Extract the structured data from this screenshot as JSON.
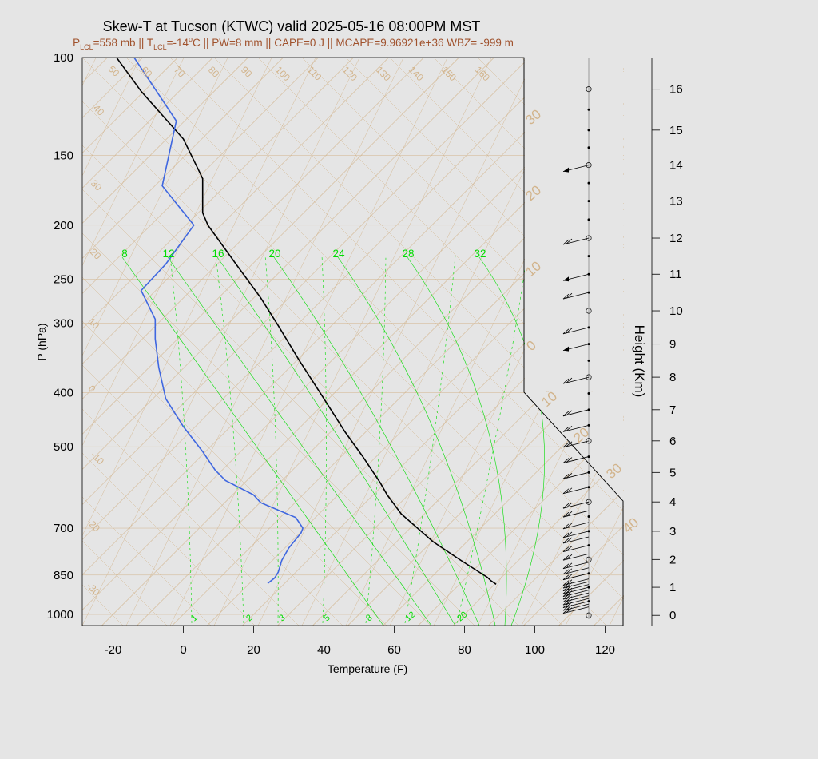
{
  "title": "Skew-T at Tucson (KTWC) valid 2025-05-16 08:00PM MST",
  "subtitle": {
    "p_lcl_sym": "P",
    "p_lcl_sub": "LCL",
    "p_lcl_val": "=558 mb || ",
    "t_lcl_sym": "T",
    "t_lcl_sub": "LCL",
    "t_lcl_val": "=-14",
    "deg": "o",
    "rest": "C || PW=8 mm || CAPE=0 J || MCAPE=9.96921e+36 WBZ= -999 m"
  },
  "colors": {
    "background": "#e5e5e5",
    "temperature": "#000000",
    "dewpoint": "#3f67e0",
    "isotherm": "#d2b48c",
    "mixing_ratio": "#00dd00",
    "wind": "#000000"
  },
  "axes": {
    "xlabel": "Temperature (F)",
    "ylabel": "P (hPa)",
    "y2label": "Height (Km)",
    "x_ticks": [
      "-20",
      "0",
      "20",
      "40",
      "60",
      "80",
      "100",
      "120"
    ],
    "y_ticks": [
      "100",
      "150",
      "200",
      "250",
      "300",
      "400",
      "500",
      "700",
      "850",
      "1000"
    ],
    "height_ticks": [
      "0",
      "1",
      "2",
      "3",
      "4",
      "5",
      "6",
      "7",
      "8",
      "9",
      "10",
      "11",
      "12",
      "13",
      "14",
      "15",
      "16"
    ]
  },
  "chart_data": {
    "type": "line",
    "title": "Skew-T at Tucson (KTWC) valid 2025-05-16 08:00PM MST",
    "xlabel": "Temperature (F)",
    "ylabel": "P (hPa)",
    "xlim": [
      -28,
      125
    ],
    "ylim": [
      1030,
      100
    ],
    "y_scale": "log",
    "skewed_temperature_axes": true,
    "isotherm_labels": [
      "50",
      "60",
      "70",
      "80",
      "90",
      "100",
      "110",
      "120",
      "130",
      "140",
      "150",
      "160",
      "40",
      "30",
      "20",
      "10",
      "0",
      "-10",
      "-20",
      "-30"
    ],
    "mixing_ratio_labels_top": [
      "8",
      "12",
      "16",
      "20",
      "24",
      "28",
      "32"
    ],
    "mixing_ratio_labels_bottom": [
      "1",
      "2",
      "3",
      "5",
      "8",
      "12",
      "20"
    ],
    "theta_labels": [
      "30",
      "20",
      "10",
      "0",
      "10",
      "20",
      "30",
      "40"
    ],
    "series": [
      {
        "name": "Temperature",
        "points": [
          [
            89.0,
            883
          ],
          [
            87.5,
            870
          ],
          [
            86.5,
            858
          ],
          [
            79,
            800
          ],
          [
            71,
            740
          ],
          [
            62,
            660
          ],
          [
            58,
            610
          ],
          [
            56,
            580
          ],
          [
            51,
            520
          ],
          [
            46,
            470
          ],
          [
            40,
            410
          ],
          [
            33,
            350
          ],
          [
            27,
            303
          ],
          [
            22,
            270
          ],
          [
            15,
            235
          ],
          [
            7,
            200
          ],
          [
            5.5,
            190
          ],
          [
            5.5,
            165
          ],
          [
            4.5,
            160
          ],
          [
            0,
            140
          ],
          [
            -12,
            115
          ],
          [
            -19,
            100
          ]
        ]
      },
      {
        "name": "Dewpoint",
        "points": [
          [
            24,
            880
          ],
          [
            26,
            860
          ],
          [
            27,
            840
          ],
          [
            28,
            800
          ],
          [
            30,
            760
          ],
          [
            33.5,
            714
          ],
          [
            34,
            700
          ],
          [
            32,
            670
          ],
          [
            22,
            630
          ],
          [
            20,
            610
          ],
          [
            12,
            575
          ],
          [
            9,
            550
          ],
          [
            5.5,
            510
          ],
          [
            0,
            460
          ],
          [
            -5,
            410
          ],
          [
            -7,
            360
          ],
          [
            -8,
            320
          ],
          [
            -8,
            295
          ],
          [
            -12,
            262
          ],
          [
            -5,
            235
          ],
          [
            3,
            200
          ],
          [
            -6,
            170
          ],
          [
            -2,
            130
          ],
          [
            -14,
            100
          ]
        ]
      }
    ],
    "height_axis": {
      "range_km": [
        0,
        16
      ],
      "pressures_hpa": [
        1004,
        894,
        797,
        709,
        628,
        556,
        488,
        429,
        375,
        327,
        285,
        245,
        211,
        181,
        156,
        135,
        114
      ]
    },
    "wind_barbs": {
      "altitudes_km": [
        0.3,
        0.4,
        0.5,
        0.6,
        0.7,
        0.8,
        0.9,
        1.0,
        1.1,
        1.2,
        1.3,
        1.5,
        1.7,
        1.9,
        2.2,
        2.5,
        2.8,
        3.0,
        3.3,
        3.7,
        4.0,
        4.5,
        5.0,
        5.5,
        6.0,
        6.5,
        7.0,
        8.0,
        9.0,
        9.5,
        10.5,
        11.0,
        12.0,
        14.0
      ],
      "barb_type": [
        "light",
        "light",
        "light",
        "light",
        "light",
        "light",
        "light",
        "light",
        "light",
        "light",
        "light",
        "light",
        "light",
        "light",
        "light",
        "light",
        "light",
        "light",
        "light",
        "light",
        "light",
        "light",
        "light",
        "light",
        "light",
        "light",
        "light",
        "light",
        "flag",
        "light",
        "light",
        "flag",
        "light",
        "flag"
      ]
    }
  }
}
